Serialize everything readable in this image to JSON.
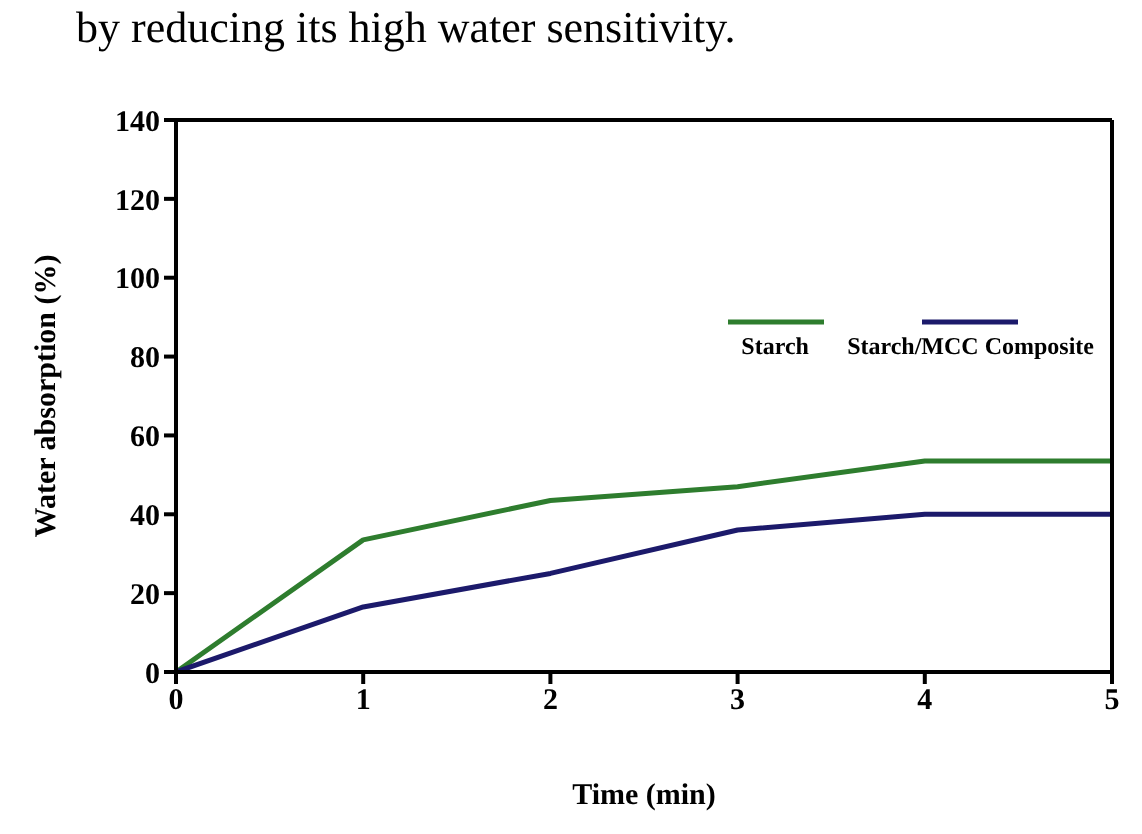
{
  "chart_data": {
    "type": "line",
    "annotations": [
      "by reducing its high water sensitivity."
    ],
    "xlabel": "Time (min)",
    "ylabel": "Water absorption (%)",
    "x": [
      0,
      1,
      2,
      3,
      4,
      5
    ],
    "series": [
      {
        "name": "Starch",
        "color": "#2e7d2e",
        "values": [
          0,
          33.5,
          43.5,
          47,
          53.5,
          53.5
        ]
      },
      {
        "name": "Starch/MCC Composite",
        "color": "#1c1a6b",
        "values": [
          0,
          16.5,
          25,
          36,
          40,
          40
        ]
      }
    ],
    "xlim": [
      0,
      5
    ],
    "xticks": [
      0,
      1,
      2,
      3,
      4,
      5
    ],
    "ylim": [
      0,
      140
    ],
    "yticks": [
      0,
      20,
      40,
      60,
      80,
      100,
      120,
      140
    ],
    "legend": "top right",
    "grid": false,
    "marker": "none",
    "line_style": "solid"
  }
}
